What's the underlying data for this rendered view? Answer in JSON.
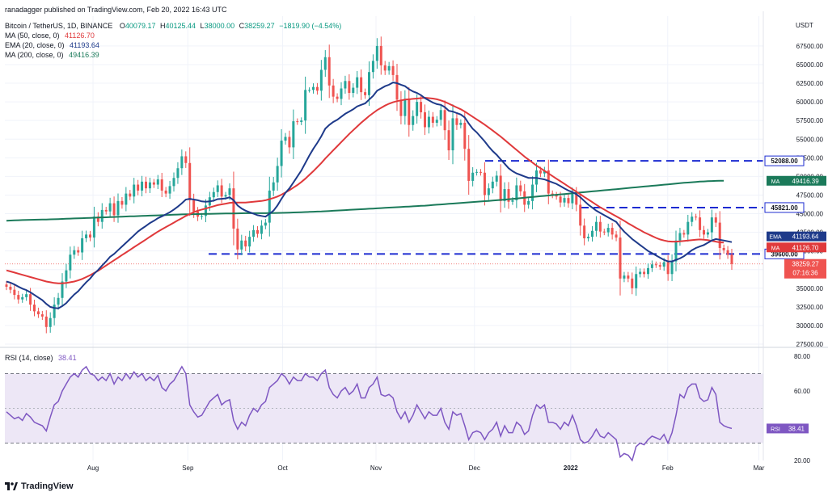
{
  "header": {
    "publisher": "ranadagger published on TradingView.com, Feb 20, 2022 16:43 UTC",
    "symbol": "Bitcoin / TetherUS, 1D, BINANCE",
    "ohlc": {
      "o_label": "O",
      "o": "40079.17",
      "h_label": "H",
      "h": "40125.44",
      "l_label": "L",
      "l": "38000.00",
      "c_label": "C",
      "c": "38259.27",
      "change": "−1819.90 (−4.54%)"
    },
    "ma50": {
      "label": "MA (50, close, 0)",
      "value": "41126.70"
    },
    "ema20": {
      "label": "EMA (20, close, 0)",
      "value": "41193.64"
    },
    "ma200": {
      "label": "MA (200, close, 0)",
      "value": "49416.39"
    },
    "rsi": {
      "label": "RSI (14, close)",
      "value": "38.41"
    }
  },
  "currency": "USDT",
  "logo_text": "TradingView",
  "colors": {
    "up": "#26a69a",
    "down": "#ef5350",
    "ema20": "#1e3a8a",
    "ma50": "#e0393b",
    "ma200": "#1b7a5a",
    "level": "#1c2bd1",
    "rsi": "#7e57c2",
    "rsi_band": "#ede7f6",
    "grid": "#f0f3fa",
    "axis_text": "#131722"
  },
  "chart_data": {
    "type": "candlestick",
    "x_ticks": [
      "Aug",
      "Sep",
      "Oct",
      "Nov",
      "Dec",
      "2022",
      "Feb",
      "Mar"
    ],
    "y_ticks": [
      "67500.00",
      "65000.00",
      "62500.00",
      "60000.00",
      "57500.00",
      "55000.00",
      "52500.00",
      "50000.00",
      "47500.00",
      "45000.00",
      "42500.00",
      "40000.00",
      "37500.00",
      "35000.00",
      "32500.00",
      "30000.00",
      "27500.00"
    ],
    "ylim": [
      27500,
      71500
    ],
    "levels": [
      52088,
      45821,
      39600
    ],
    "level_labels": [
      "52088.00",
      "45821.00",
      "39600.00"
    ],
    "badges": [
      {
        "label": "MA",
        "value": "49416.39",
        "color_key": "ma200"
      },
      {
        "label": "EMA",
        "value": "41193.64",
        "color_key": "ema20"
      },
      {
        "label": "MA",
        "value": "41126.70",
        "color_key": "ma50"
      }
    ],
    "last_price": {
      "value": "38259.27",
      "countdown": "07:16:36"
    },
    "closes": [
      35200,
      34800,
      34100,
      33500,
      33800,
      34200,
      32800,
      31900,
      31500,
      31200,
      29800,
      31000,
      32800,
      33700,
      35900,
      37400,
      39500,
      40100,
      39800,
      41700,
      42200,
      41800,
      44600,
      43900,
      45500,
      45300,
      46400,
      44800,
      46700,
      46200,
      47700,
      47300,
      48900,
      48100,
      49300,
      48400,
      49200,
      48900,
      49600,
      48100,
      47700,
      48700,
      49800,
      51100,
      52700,
      51800,
      46800,
      45300,
      44600,
      44700,
      46100,
      47200,
      47900,
      48800,
      47300,
      47500,
      48400,
      43000,
      40200,
      41400,
      40600,
      41900,
      42800,
      42300,
      43400,
      43800,
      48100,
      49200,
      51400,
      54800,
      55300,
      53900,
      57400,
      57300,
      57500,
      61600,
      61600,
      62000,
      61500,
      64300,
      66000,
      62200,
      60700,
      60400,
      61800,
      62800,
      61200,
      61900,
      63300,
      61300,
      60900,
      64000,
      65500,
      67500,
      64900,
      64200,
      64800,
      63600,
      60300,
      58100,
      60400,
      56900,
      58100,
      60000,
      58600,
      56600,
      58000,
      57200,
      57600,
      58900,
      56200,
      53500,
      57800,
      56900,
      57200,
      53700,
      49400,
      50500,
      50600,
      50500,
      47500,
      48400,
      49300,
      50100,
      46700,
      48300,
      46600,
      46800,
      48800,
      48000,
      46200,
      46700,
      48900,
      50800,
      50400,
      50800,
      47700,
      47500,
      47300,
      46500,
      47100,
      46400,
      47700,
      46200,
      43400,
      41700,
      41900,
      42700,
      43900,
      42600,
      42500,
      43100,
      42200,
      41800,
      36300,
      36700,
      36300,
      35000,
      36900,
      37200,
      36900,
      37700,
      38200,
      38100,
      37900,
      38500,
      36900,
      38600,
      41400,
      42400,
      42200,
      43900,
      44600,
      44500,
      42800,
      42200,
      42500,
      44500,
      43800,
      40400,
      40100,
      39500,
      38259
    ],
    "ema20": [
      35900,
      35750,
      35500,
      35200,
      34950,
      34750,
      34450,
      34100,
      33750,
      33400,
      32900,
      32500,
      32350,
      32300,
      32600,
      33000,
      33600,
      34150,
      34600,
      35200,
      35800,
      36300,
      36950,
      37450,
      38050,
      38600,
      39200,
      39600,
      40100,
      40600,
      41100,
      41600,
      42100,
      42600,
      43000,
      43350,
      43750,
      44050,
      44400,
      44650,
      44900,
      45200,
      45550,
      45950,
      46400,
      46900,
      47000,
      46900,
      46800,
      46650,
      46600,
      46650,
      46750,
      46950,
      47000,
      47050,
      47200,
      46800,
      46100,
      45700,
      45400,
      45200,
      45000,
      44800,
      44700,
      44600,
      45000,
      45400,
      46100,
      47000,
      47800,
      48400,
      49200,
      50000,
      50800,
      51800,
      52800,
      53700,
      54500,
      55400,
      56400,
      56900,
      57300,
      57600,
      58000,
      58400,
      58700,
      59000,
      59400,
      59600,
      59800,
      60300,
      60800,
      61500,
      61800,
      62100,
      62300,
      62600,
      62500,
      62300,
      62100,
      61700,
      61400,
      61200,
      60900,
      60500,
      60200,
      59900,
      59700,
      59600,
      59300,
      58800,
      58700,
      58500,
      58300,
      57900,
      57100,
      56400,
      55900,
      55300,
      54700,
      54000,
      53400,
      52900,
      52300,
      51700,
      51100,
      50700,
      50400,
      50200,
      50000,
      49800,
      49800,
      49800,
      49700,
      49600,
      49400,
      49200,
      49000,
      48700,
      48400,
      48100,
      47900,
      47600,
      47200,
      46700,
      46200,
      45800,
      45400,
      45100,
      44800,
      44500,
      44200,
      43900,
      43200,
      42600,
      42100,
      41600,
      41200,
      40800,
      40400,
      40000,
      39700,
      39400,
      39100,
      38800,
      38600,
      38600,
      38800,
      39000,
      39300,
      39700,
      40100,
      40400,
      40600,
      40800,
      41100,
      41400,
      41600,
      41500,
      41400,
      41300,
      41193
    ],
    "ma50": [
      37400,
      37250,
      37100,
      36950,
      36800,
      36650,
      36500,
      36350,
      36200,
      36050,
      35900,
      35800,
      35700,
      35650,
      35650,
      35700,
      35800,
      35900,
      36050,
      36250,
      36500,
      36750,
      37050,
      37350,
      37700,
      38050,
      38400,
      38750,
      39100,
      39450,
      39800,
      40150,
      40500,
      40850,
      41200,
      41550,
      41900,
      42250,
      42600,
      42900,
      43200,
      43500,
      43800,
      44100,
      44400,
      44700,
      44950,
      45200,
      45400,
      45550,
      45700,
      45850,
      46000,
      46150,
      46250,
      46350,
      46450,
      46500,
      46500,
      46500,
      46500,
      46550,
      46600,
      46650,
      46700,
      46800,
      46950,
      47100,
      47300,
      47550,
      47850,
      48150,
      48500,
      48850,
      49250,
      49700,
      50200,
      50700,
      51250,
      51800,
      52400,
      52950,
      53500,
      54050,
      54600,
      55150,
      55700,
      56200,
      56700,
      57200,
      57650,
      58100,
      58500,
      58900,
      59200,
      59500,
      59750,
      59950,
      60100,
      60200,
      60300,
      60350,
      60400,
      60450,
      60500,
      60550,
      60500,
      60450,
      60350,
      60200,
      60000,
      59750,
      59500,
      59250,
      59000,
      58700,
      58350,
      58000,
      57650,
      57300,
      56950,
      56550,
      56150,
      55750,
      55350,
      54900,
      54450,
      54000,
      53550,
      53100,
      52650,
      52250,
      51850,
      51450,
      51100,
      50750,
      50400,
      50050,
      49700,
      49350,
      49000,
      48650,
      48300,
      47950,
      47600,
      47250,
      46900,
      46550,
      46200,
      45850,
      45550,
      45250,
      44950,
      44650,
      44350,
      44050,
      43700,
      43400,
      43100,
      42800,
      42500,
      42250,
      42000,
      41750,
      41550,
      41400,
      41300,
      41250,
      41250,
      41300,
      41350,
      41400,
      41450,
      41500,
      41550,
      41500,
      41450,
      41350,
      41250,
      41150,
      41126
    ],
    "ma200": [
      44050,
      44080,
      44110,
      44130,
      44150,
      44170,
      44180,
      44190,
      44200,
      44210,
      44220,
      44240,
      44260,
      44280,
      44300,
      44320,
      44340,
      44360,
      44380,
      44400,
      44420,
      44440,
      44460,
      44480,
      44500,
      44520,
      44540,
      44560,
      44580,
      44600,
      44620,
      44640,
      44660,
      44680,
      44700,
      44720,
      44740,
      44760,
      44780,
      44800,
      44820,
      44840,
      44860,
      44880,
      44900,
      44920,
      44930,
      44940,
      44950,
      44960,
      44970,
      44980,
      44990,
      45000,
      45010,
      45020,
      45030,
      45040,
      45050,
      45060,
      45070,
      45070,
      45070,
      45070,
      45070,
      45070,
      45080,
      45090,
      45100,
      45110,
      45120,
      45140,
      45160,
      45180,
      45200,
      45220,
      45240,
      45260,
      45280,
      45300,
      45330,
      45360,
      45390,
      45420,
      45450,
      45480,
      45510,
      45540,
      45570,
      45600,
      45630,
      45660,
      45690,
      45720,
      45750,
      45780,
      45810,
      45840,
      45870,
      45900,
      45930,
      45960,
      45990,
      46020,
      46050,
      46080,
      46120,
      46160,
      46200,
      46240,
      46280,
      46320,
      46360,
      46400,
      46440,
      46480,
      46520,
      46560,
      46600,
      46640,
      46680,
      46720,
      46760,
      46800,
      46840,
      46890,
      46940,
      46990,
      47040,
      47090,
      47140,
      47190,
      47240,
      47290,
      47340,
      47390,
      47440,
      47490,
      47540,
      47590,
      47640,
      47690,
      47740,
      47790,
      47840,
      47890,
      47940,
      47990,
      48040,
      48090,
      48140,
      48190,
      48240,
      48290,
      48340,
      48390,
      48440,
      48490,
      48540,
      48590,
      48640,
      48690,
      48740,
      48790,
      48840,
      48890,
      48940,
      48990,
      49040,
      49090,
      49140,
      49180,
      49220,
      49260,
      49300,
      49330,
      49360,
      49380,
      49400,
      49410,
      49416
    ],
    "rsi": {
      "ylim": [
        20,
        80
      ],
      "band": [
        30,
        70
      ],
      "mid": 50,
      "y_ticks": [
        "80.00",
        "60.00",
        "20.00"
      ],
      "values": [
        48,
        46,
        44,
        45,
        43,
        47,
        45,
        42,
        41,
        40,
        37,
        45,
        52,
        54,
        60,
        64,
        68,
        70,
        68,
        72,
        74,
        70,
        69,
        66,
        68,
        66,
        70,
        64,
        68,
        66,
        70,
        67,
        71,
        68,
        70,
        66,
        68,
        66,
        69,
        62,
        60,
        64,
        66,
        70,
        74,
        70,
        52,
        48,
        45,
        46,
        50,
        54,
        56,
        58,
        52,
        54,
        55,
        43,
        38,
        42,
        40,
        46,
        50,
        48,
        52,
        54,
        62,
        64,
        66,
        70,
        68,
        64,
        68,
        66,
        66,
        70,
        68,
        68,
        66,
        70,
        72,
        62,
        58,
        56,
        60,
        62,
        58,
        60,
        64,
        56,
        56,
        62,
        64,
        68,
        58,
        57,
        58,
        56,
        48,
        44,
        48,
        42,
        46,
        52,
        48,
        44,
        48,
        46,
        46,
        50,
        42,
        38,
        48,
        46,
        47,
        40,
        32,
        36,
        37,
        36,
        32,
        36,
        38,
        42,
        34,
        40,
        36,
        36,
        42,
        40,
        35,
        37,
        46,
        52,
        50,
        52,
        42,
        42,
        41,
        38,
        42,
        40,
        46,
        40,
        32,
        30,
        31,
        34,
        38,
        34,
        33,
        36,
        34,
        32,
        22,
        24,
        23,
        20,
        28,
        30,
        29,
        32,
        34,
        33,
        32,
        35,
        30,
        36,
        46,
        58,
        56,
        62,
        64,
        64,
        56,
        54,
        55,
        62,
        58,
        42,
        40,
        39,
        38.41
      ]
    }
  }
}
